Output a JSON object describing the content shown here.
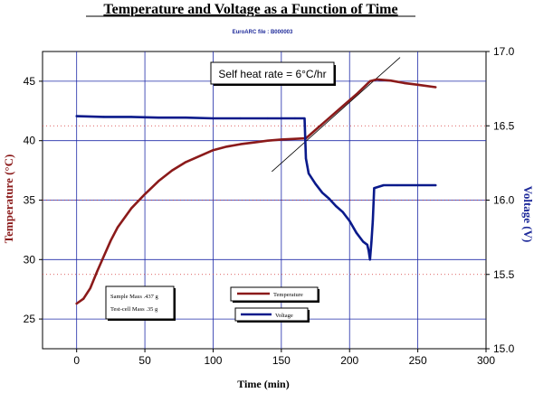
{
  "chart_data": {
    "type": "line",
    "title": "Temperature and Voltage as a Function of Time",
    "subtitle": "EuroARC file : B000003",
    "xlabel": "Time (min)",
    "ylabel_left": "Temperature (°C)",
    "ylabel_right": "Voltage (V)",
    "xlim": [
      -25,
      300
    ],
    "ylim_left": [
      22.5,
      47.5
    ],
    "ylim_right": [
      15.0,
      17.0
    ],
    "x_ticks": [
      0,
      50,
      100,
      150,
      200,
      250,
      300
    ],
    "y_left_ticks": [
      25,
      30,
      35,
      40,
      45
    ],
    "y_right_ticks": [
      15.0,
      15.5,
      16.0,
      16.5,
      17.0
    ],
    "y_right_tick_labels": [
      "15.0",
      "15.5",
      "16.0",
      "16.5",
      "17.0"
    ],
    "grid": true,
    "series": [
      {
        "name": "Temperature",
        "axis": "left",
        "color": "#8b1a1a",
        "x": [
          0,
          5,
          10,
          15,
          20,
          25,
          30,
          40,
          50,
          60,
          70,
          80,
          90,
          100,
          110,
          120,
          130,
          140,
          150,
          160,
          168,
          175,
          185,
          195,
          205,
          215,
          220,
          230,
          240,
          250,
          263
        ],
        "y": [
          26.3,
          26.7,
          27.6,
          29.0,
          30.3,
          31.6,
          32.7,
          34.3,
          35.5,
          36.6,
          37.5,
          38.2,
          38.7,
          39.2,
          39.5,
          39.7,
          39.85,
          40.0,
          40.1,
          40.15,
          40.2,
          40.9,
          41.9,
          42.9,
          43.9,
          45.0,
          45.15,
          45.05,
          44.85,
          44.7,
          44.5
        ]
      },
      {
        "name": "Voltage",
        "axis": "right",
        "color": "#0a1a8b",
        "x": [
          0,
          20,
          40,
          60,
          80,
          100,
          120,
          140,
          160,
          167,
          168,
          170,
          175,
          180,
          185,
          190,
          195,
          200,
          205,
          210,
          213,
          214,
          215,
          216,
          217,
          218,
          225,
          235,
          250,
          263
        ],
        "y": [
          16.565,
          16.56,
          16.56,
          16.555,
          16.555,
          16.55,
          16.55,
          16.55,
          16.55,
          16.55,
          16.28,
          16.18,
          16.11,
          16.05,
          16.01,
          15.96,
          15.92,
          15.86,
          15.78,
          15.72,
          15.7,
          15.66,
          15.6,
          15.72,
          15.86,
          16.08,
          16.1,
          16.1,
          16.1,
          16.1
        ]
      }
    ],
    "annotations": {
      "self_heat_rate": "Self heat rate = 6°C/hr",
      "self_heat_line": {
        "x": [
          143,
          237
        ],
        "y": [
          37.4,
          47.0
        ]
      },
      "sample_mass": "Sample Mass  .437 g",
      "test_cell_mass": "Test-cell Mass  .35 g"
    },
    "legend_placement": "bottom-center"
  }
}
